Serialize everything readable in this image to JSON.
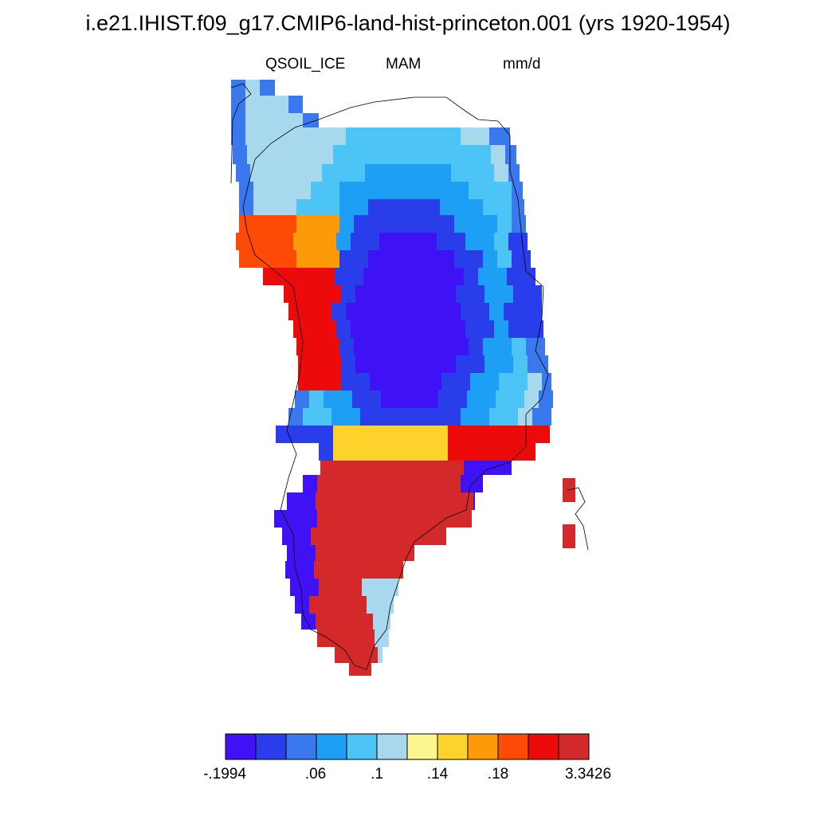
{
  "title": "i.e21.IHIST.f09_g17.CMIP6-land-hist-princeton.001 (yrs 1920-1954)",
  "variable": "QSOIL_ICE",
  "season": "MAM",
  "units": "mm/d",
  "colorbar": {
    "colors": [
      "#3f12f5",
      "#2a3deb",
      "#3a78ee",
      "#1e9ff6",
      "#4cc4f5",
      "#a8d8ee",
      "#fdf58e",
      "#fdd22a",
      "#fd9a0a",
      "#fd4a07",
      "#ec0a0a",
      "#d4292b"
    ],
    "tick_labels": [
      "-.1994",
      ".06",
      ".1",
      ".14",
      ".18",
      "3.3426"
    ]
  }
}
